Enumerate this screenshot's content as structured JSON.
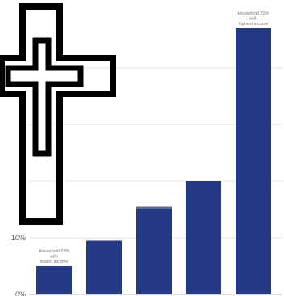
{
  "chart_data": {
    "type": "bar",
    "categories": [
      "",
      "",
      "",
      "",
      ""
    ],
    "values": [
      5,
      9.5,
      15.5,
      20,
      47
    ],
    "ylim": [
      0,
      50
    ],
    "y_ticks": [
      {
        "value": 0,
        "label": "0%"
      },
      {
        "value": 10,
        "label": "10%"
      }
    ],
    "grid": true,
    "annotations": [
      {
        "bar_index": 0,
        "lines": [
          "Household 20%",
          "with",
          "lowest income"
        ]
      },
      {
        "bar_index": 4,
        "lines": [
          "Household 20%",
          "with",
          "highest income"
        ]
      }
    ],
    "colors": {
      "bar": "#243a86",
      "bar_highlight_top": "#5a6a9a",
      "grid": "#e3e3e3",
      "axis": "#bbbbbb"
    }
  },
  "overlay": {
    "icon": "cross-icon",
    "colors": {
      "stroke": "#000000",
      "fill": "#ffffff"
    }
  }
}
